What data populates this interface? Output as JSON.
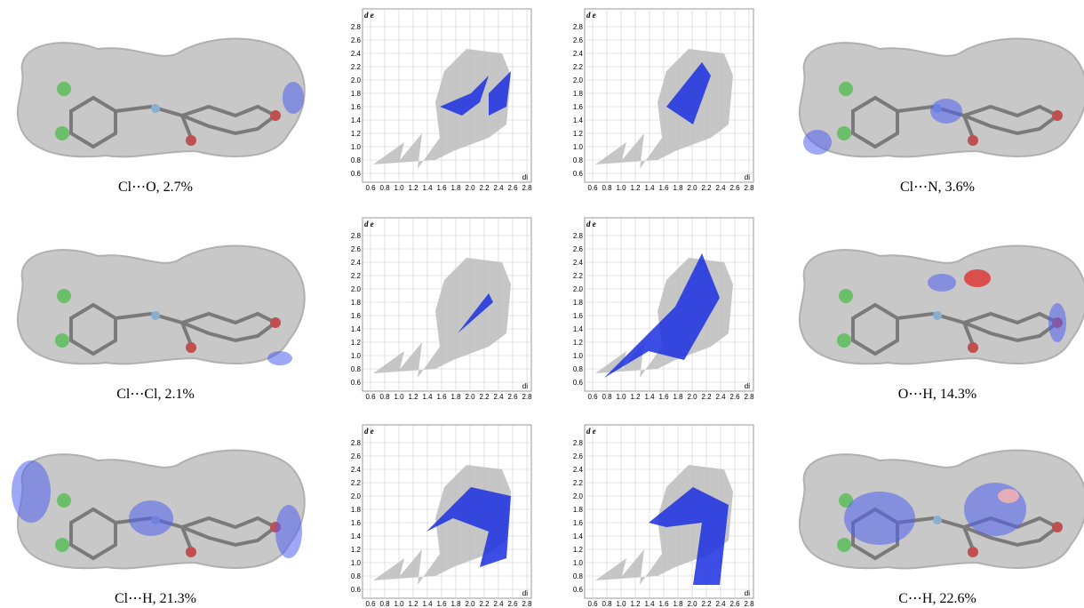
{
  "surfaces": [
    {
      "caption": "Cl⋯O, 2.7%"
    },
    {
      "caption": "Cl⋯N, 3.6%"
    },
    {
      "caption": "Cl⋯Cl, 2.1%"
    },
    {
      "caption": "O⋯H, 14.3%"
    },
    {
      "caption": "Cl⋯H, 21.3%"
    },
    {
      "caption": "C⋯H, 22.6%"
    }
  ],
  "fingerprint_axes": {
    "y_label": "d e",
    "x_label": "di",
    "ticks": [
      "0.6",
      "0.8",
      "1.0",
      "1.2",
      "1.4",
      "1.6",
      "1.8",
      "2.0",
      "2.2",
      "2.4",
      "2.6",
      "2.8"
    ]
  }
}
